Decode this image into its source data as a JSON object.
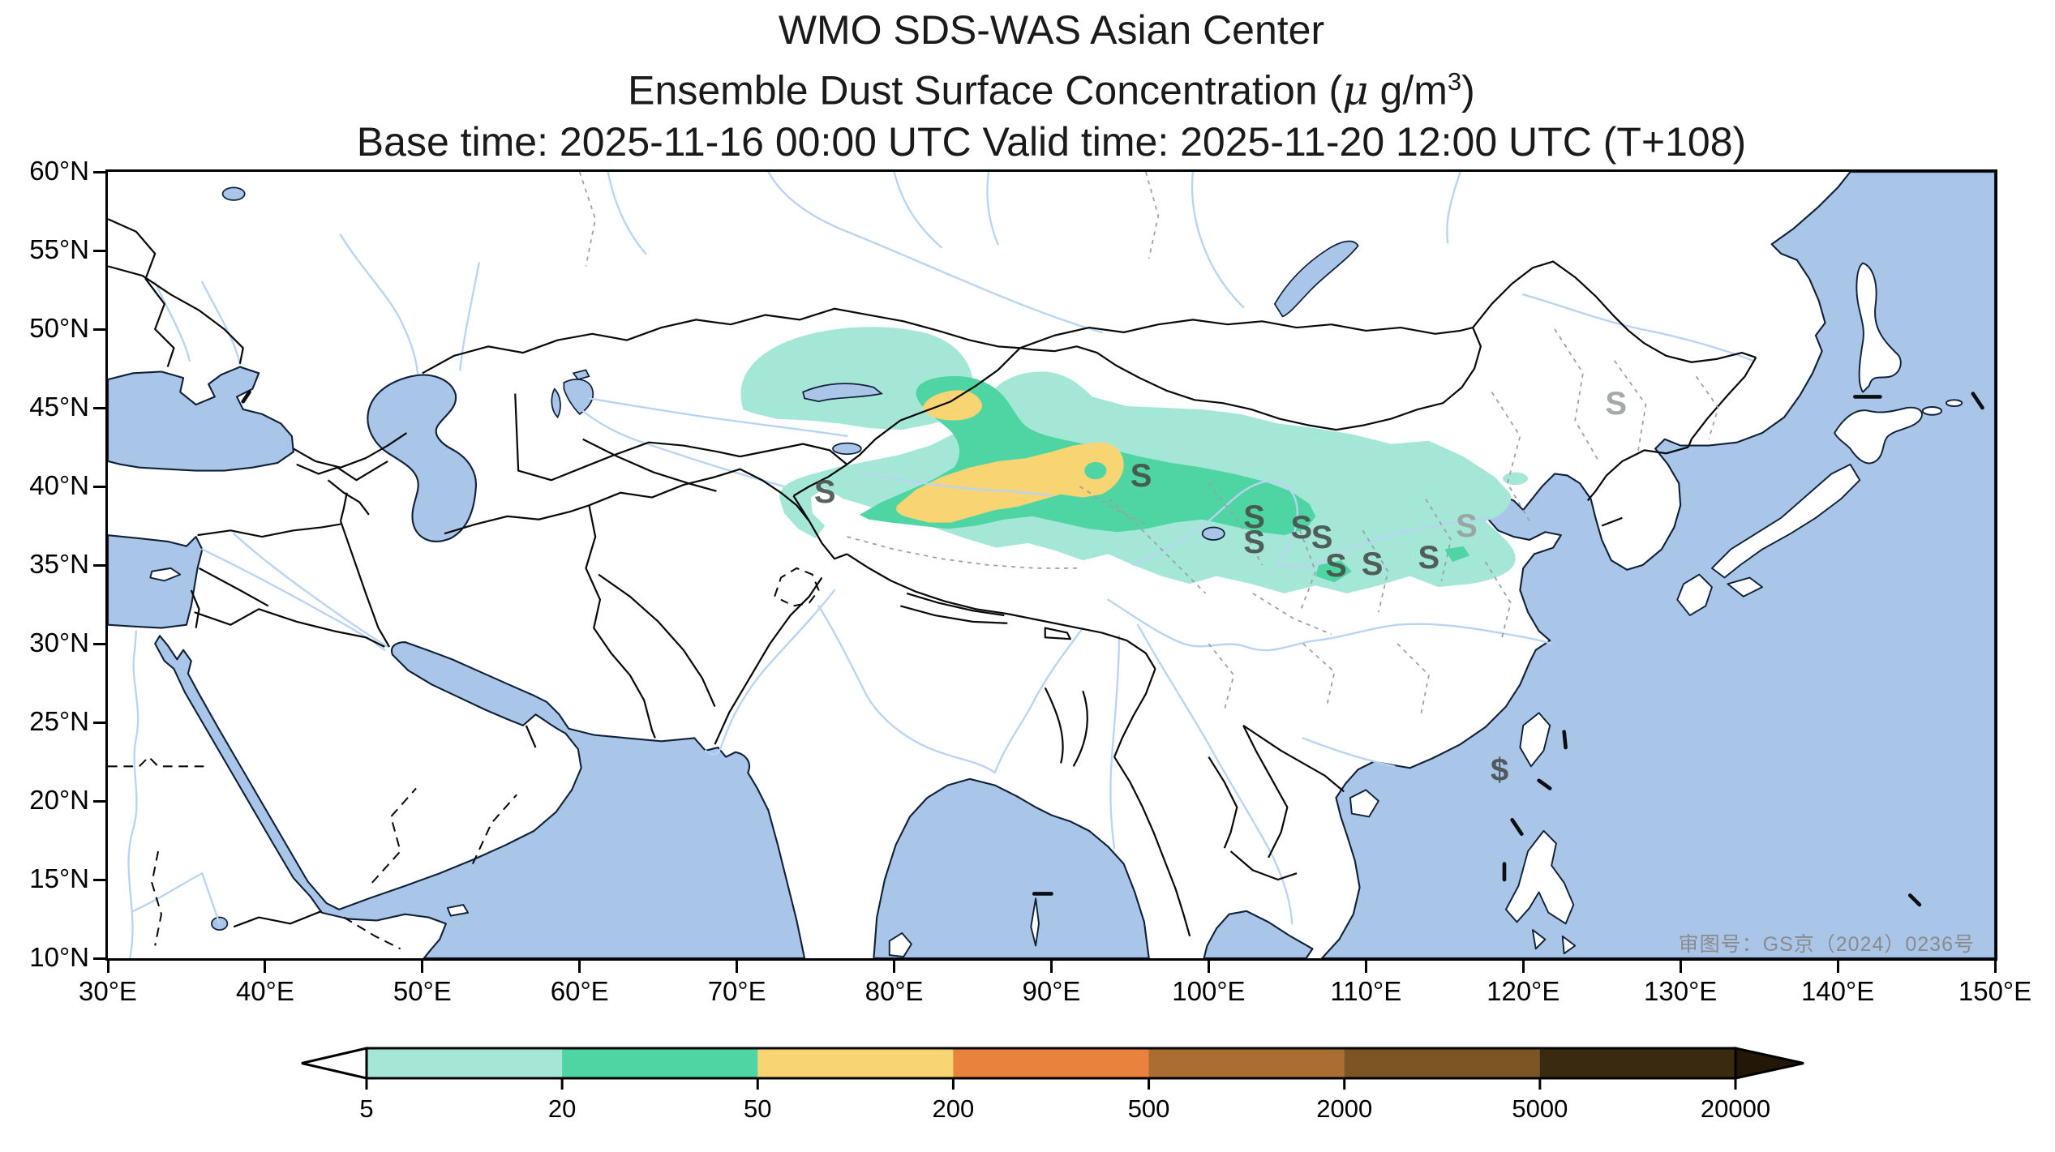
{
  "title": {
    "line1": "WMO SDS-WAS Asian Center",
    "line2_prefix": "Ensemble Dust Surface Concentration (",
    "line2_mu": "μ",
    "line2_mid": " g/m",
    "line2_sup": "3",
    "line2_suffix": ")",
    "line3": "Base time: 2025-11-16 00:00 UTC Valid time: 2025-11-20 12:00 UTC (T+108)"
  },
  "axes": {
    "lat_ticks": [
      "60°N",
      "55°N",
      "50°N",
      "45°N",
      "40°N",
      "35°N",
      "30°N",
      "25°N",
      "20°N",
      "15°N",
      "10°N"
    ],
    "lon_ticks": [
      "30°E",
      "40°E",
      "50°E",
      "60°E",
      "70°E",
      "80°E",
      "90°E",
      "100°E",
      "110°E",
      "120°E",
      "130°E",
      "140°E",
      "150°E"
    ],
    "lat_range": [
      10,
      60
    ],
    "lon_range": [
      30,
      150
    ]
  },
  "colorbar": {
    "tick_labels": [
      "5",
      "20",
      "50",
      "200",
      "500",
      "2000",
      "5000",
      "20000"
    ],
    "segment_colors": [
      "#a5e7d7",
      "#4ed5a3",
      "#f8d572",
      "#e8823c",
      "#ab6d30",
      "#7d5423",
      "#3a2a10"
    ],
    "left_arrow_color": "#ffffff",
    "right_arrow_color": "#231807",
    "outline_color": "#000000"
  },
  "map": {
    "annotation": "审图号：GS京（2024）0236号",
    "annotation_color": "#8a8a8a",
    "sea_color": "#a9c6e9",
    "river_color": "#b9d3f2",
    "land_color": "#ffffff",
    "province_border_color": "#9aa0a6",
    "dust_levels": [
      {
        "threshold": 5,
        "color": "#a5e7d7"
      },
      {
        "threshold": 20,
        "color": "#4ed5a3"
      },
      {
        "threshold": 50,
        "color": "#f8d572"
      }
    ],
    "stations": [
      {
        "glyph": "S",
        "lon": 75.6,
        "lat": 39.4,
        "tone": "dark"
      },
      {
        "glyph": "S",
        "lon": 95.7,
        "lat": 40.4,
        "tone": "dark"
      },
      {
        "glyph": "S",
        "lon": 102.9,
        "lat": 37.8,
        "tone": "dark"
      },
      {
        "glyph": "S",
        "lon": 102.9,
        "lat": 36.2,
        "tone": "dark"
      },
      {
        "glyph": "S",
        "lon": 105.9,
        "lat": 37.1,
        "tone": "dark"
      },
      {
        "glyph": "S",
        "lon": 107.2,
        "lat": 36.5,
        "tone": "dark"
      },
      {
        "glyph": "S",
        "lon": 108.1,
        "lat": 34.7,
        "tone": "dark"
      },
      {
        "glyph": "S",
        "lon": 110.4,
        "lat": 34.8,
        "tone": "dark"
      },
      {
        "glyph": "S",
        "lon": 114.0,
        "lat": 35.2,
        "tone": "dark"
      },
      {
        "glyph": "S",
        "lon": 116.4,
        "lat": 37.2,
        "tone": "light"
      },
      {
        "glyph": "S",
        "lon": 125.9,
        "lat": 45.0,
        "tone": "light"
      },
      {
        "glyph": "$",
        "lon": 118.5,
        "lat": 21.7,
        "tone": "dark"
      }
    ]
  },
  "chart_data": {
    "type": "filled-contour-map",
    "title": "WMO SDS-WAS Asian Center — Ensemble Dust Surface Concentration (µg/m³)",
    "base_time": "2025-11-16 00:00 UTC",
    "valid_time": "2025-11-20 12:00 UTC",
    "forecast_hour": "T+108",
    "units": "µg/m³",
    "contour_levels": [
      5,
      20,
      50,
      200,
      500,
      2000,
      5000,
      20000
    ],
    "levels_present_on_map": [
      5,
      20,
      50
    ],
    "map_extent": {
      "lon_min": 30,
      "lon_max": 150,
      "lat_min": 10,
      "lat_max": 60
    },
    "plume_description": "Dust plume stretching from eastern Kazakhstan across the Tarim Basin, Gobi and northern China (~62–120°E, 33–50°N); maximum band 50–200 µg/m³ over the Tarim Basin (~77–95°E, 39–45°N); secondary 50–200 µg/m³ cell near 82–86°E, 44.5–46°N"
  }
}
